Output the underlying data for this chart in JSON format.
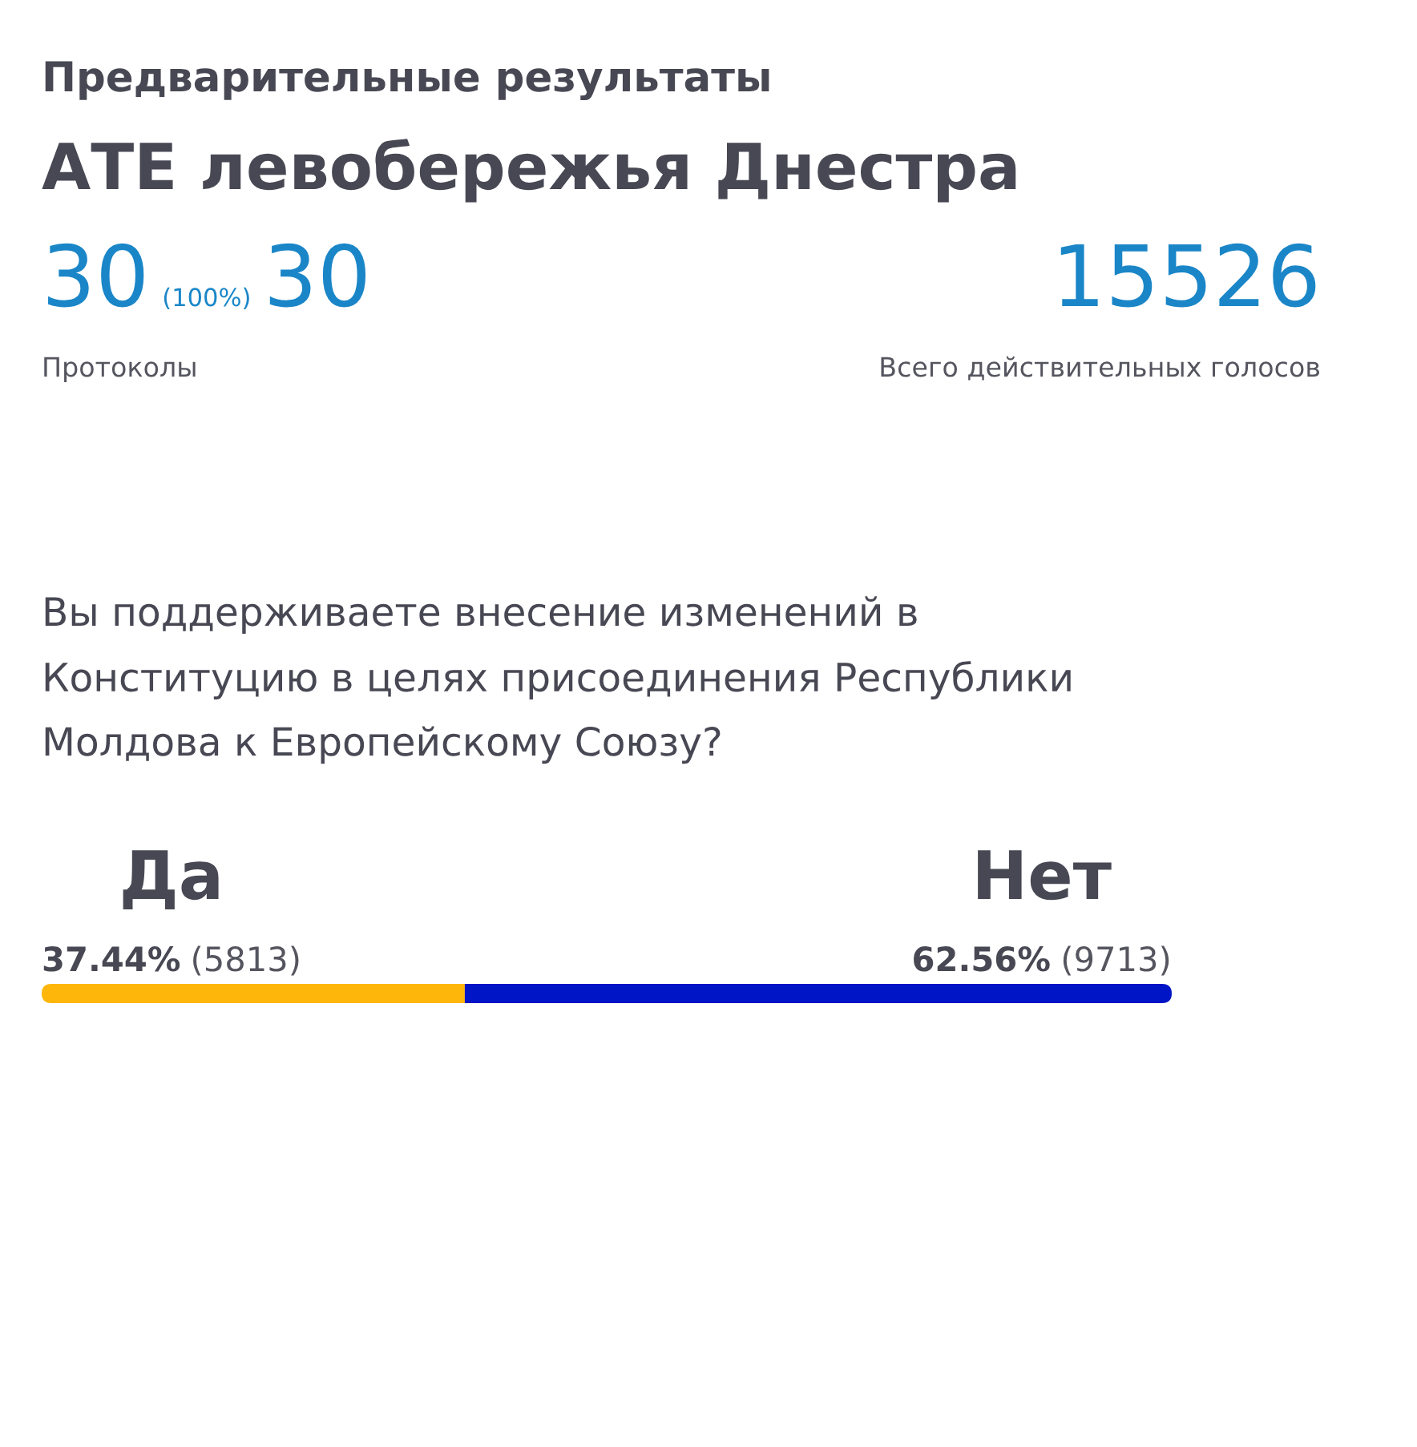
{
  "chart_data": {
    "type": "bar",
    "orientation": "horizontal",
    "stacked": true,
    "title": "Предварительные результаты",
    "subtitle": "АТЕ левобережья Днестра",
    "categories": [
      null
    ],
    "series": [
      {
        "name": "Да",
        "color": "#ffb60a",
        "values": [
          5813
        ],
        "value_labels": [
          "37.44% (5813)"
        ]
      },
      {
        "name": "Нет",
        "color": "#0015c6",
        "values": [
          9713
        ],
        "value_labels": [
          "62.56% (9713)"
        ]
      }
    ],
    "annotations": [
      "30",
      "(100%)",
      "30",
      "Протоколы",
      "15526",
      "Всего действительных голосов",
      "Вы поддерживаете внесение изменений в Конституцию в целях присоединения Республики Молдова к Европейскому Союзу?"
    ]
  }
}
